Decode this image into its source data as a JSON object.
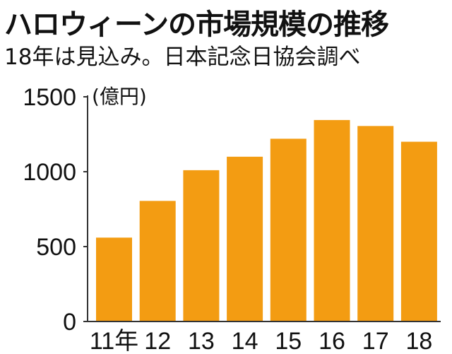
{
  "chart_data": {
    "type": "bar",
    "title": "ハロウィーンの市場規模の推移",
    "subtitle": "18年は見込み。日本記念日協会調べ",
    "ylabel": "(億円)",
    "xlabel": "",
    "categories": [
      "11年",
      "12",
      "13",
      "14",
      "15",
      "16",
      "17",
      "18"
    ],
    "values": [
      560,
      805,
      1010,
      1100,
      1220,
      1345,
      1305,
      1200
    ],
    "ylim": [
      0,
      1500
    ],
    "yticks": [
      0,
      500,
      1000,
      1500
    ],
    "grid": false,
    "bar_color": "#F39C12",
    "axis_color": "#333333"
  }
}
